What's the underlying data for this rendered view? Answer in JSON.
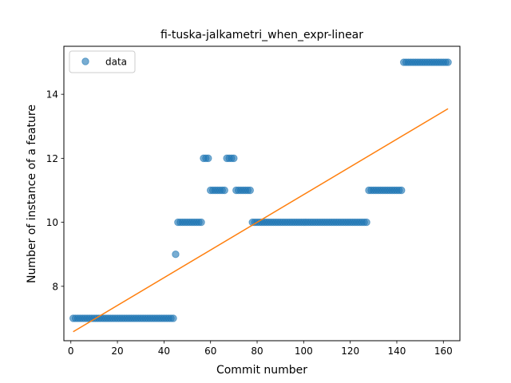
{
  "chart_data": {
    "type": "scatter",
    "title": "fi-tuska-jalkametri_when_expr-linear",
    "xlabel": "Commit number",
    "ylabel": "Number of instance of a feature",
    "xlim": [
      -3.0,
      167.1
    ],
    "ylim": [
      6.3,
      15.5
    ],
    "xticks": [
      0,
      20,
      40,
      60,
      80,
      100,
      120,
      140,
      160
    ],
    "yticks": [
      8,
      10,
      12,
      14
    ],
    "legend": {
      "position": "top-left",
      "entries": [
        "data"
      ]
    },
    "colors": {
      "data": "#1f77b4",
      "fit": "#ff7f0e"
    },
    "series": [
      {
        "name": "data",
        "kind": "points",
        "segments": [
          {
            "x_from": 1,
            "x_to": 44,
            "y": 7
          },
          {
            "x_from": 45,
            "x_to": 45,
            "y": 9
          },
          {
            "x_from": 46,
            "x_to": 56,
            "y": 10
          },
          {
            "x_from": 57,
            "x_to": 59,
            "y": 12
          },
          {
            "x_from": 60,
            "x_to": 66,
            "y": 11
          },
          {
            "x_from": 67,
            "x_to": 70,
            "y": 12
          },
          {
            "x_from": 71,
            "x_to": 77,
            "y": 11
          },
          {
            "x_from": 78,
            "x_to": 127,
            "y": 10
          },
          {
            "x_from": 128,
            "x_to": 142,
            "y": 11
          },
          {
            "x_from": 143,
            "x_to": 162,
            "y": 15
          }
        ]
      },
      {
        "kind": "line",
        "x": [
          1,
          162
        ],
        "y": [
          6.58,
          13.55
        ]
      }
    ]
  }
}
